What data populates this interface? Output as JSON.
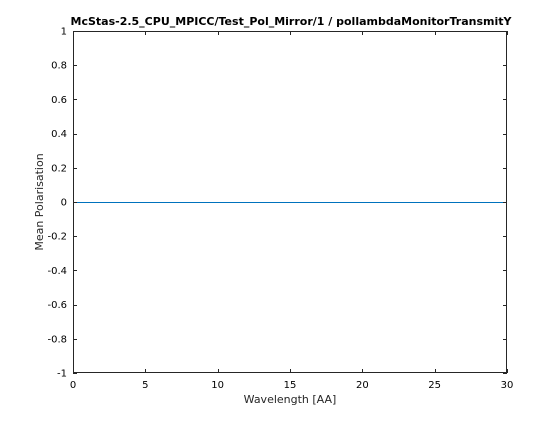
{
  "chart_data": {
    "type": "line",
    "title": "McStas-2.5_CPU_MPICC/Test_Pol_Mirror/1 / pollambdaMonitorTransmitY",
    "xlabel": "Wavelength [AA]",
    "ylabel": "Mean Polarisation",
    "xlim": [
      0,
      30
    ],
    "ylim": [
      -1,
      1
    ],
    "x_ticks": [
      0,
      5,
      10,
      15,
      20,
      25,
      30
    ],
    "x_tick_labels": [
      "0",
      "5",
      "10",
      "15",
      "20",
      "25",
      "30"
    ],
    "y_ticks": [
      -1,
      -0.8,
      -0.6,
      -0.4,
      -0.2,
      0,
      0.2,
      0.4,
      0.6,
      0.8,
      1
    ],
    "y_tick_labels": [
      "-1",
      "-0.8",
      "-0.6",
      "-0.4",
      "-0.2",
      "0",
      "0.2",
      "0.4",
      "0.6",
      "0.8",
      "1"
    ],
    "grid": false,
    "box": true,
    "series": [
      {
        "color": "#0072bd",
        "x": [
          0,
          30
        ],
        "y": [
          0,
          0
        ]
      }
    ]
  }
}
